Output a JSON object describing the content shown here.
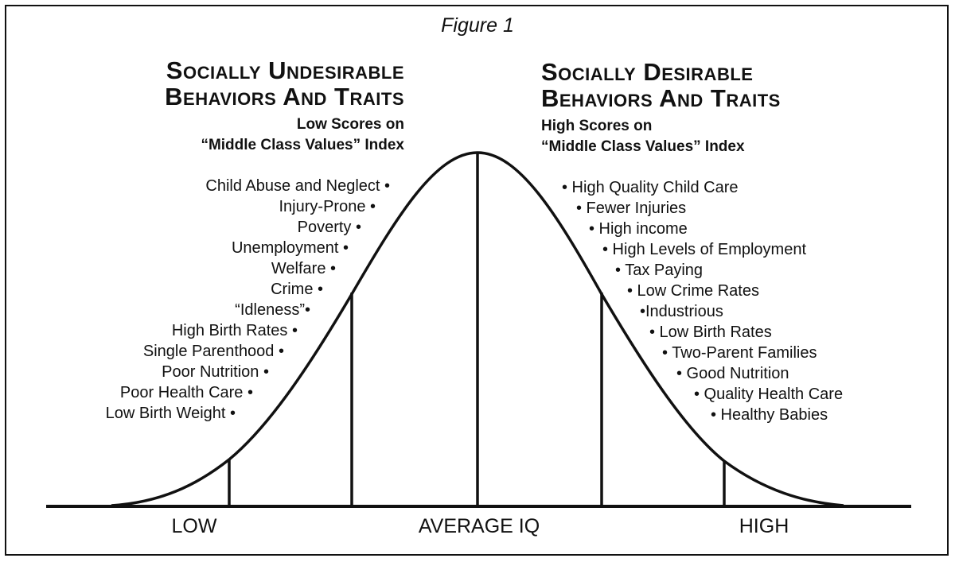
{
  "figure_title": "Figure 1",
  "left_heading": {
    "line1": "Socially Undesirable",
    "line2": "Behaviors And Traits",
    "sub1": "Low Scores on",
    "sub2": "“Middle Class Values” Index"
  },
  "right_heading": {
    "line1": "Socially Desirable",
    "line2": "Behaviors And Traits",
    "sub1": "High Scores on",
    "sub2": "“Middle Class Values” Index"
  },
  "left_traits": [
    "Child Abuse and Neglect •",
    "Injury-Prone •",
    "Poverty •",
    "Unemployment •",
    "Welfare •",
    "Crime •",
    "“Idleness”•",
    "High Birth Rates •",
    "Single Parenthood •",
    "Poor Nutrition •",
    "Poor Health Care •",
    "Low Birth Weight •"
  ],
  "right_traits": [
    "• High Quality Child Care",
    "• Fewer Injuries",
    "• High income",
    "• High Levels of Employment",
    "• Tax Paying",
    "• Low Crime Rates",
    "•Industrious",
    "• Low Birth Rates",
    "• Two-Parent Families",
    "• Good Nutrition",
    "• Quality Health Care",
    "• Healthy Babies"
  ],
  "axis_labels": {
    "low": "LOW",
    "average": "AVERAGE IQ",
    "high": "HIGH"
  },
  "colors": {
    "ink": "#111111",
    "background": "#ffffff"
  }
}
